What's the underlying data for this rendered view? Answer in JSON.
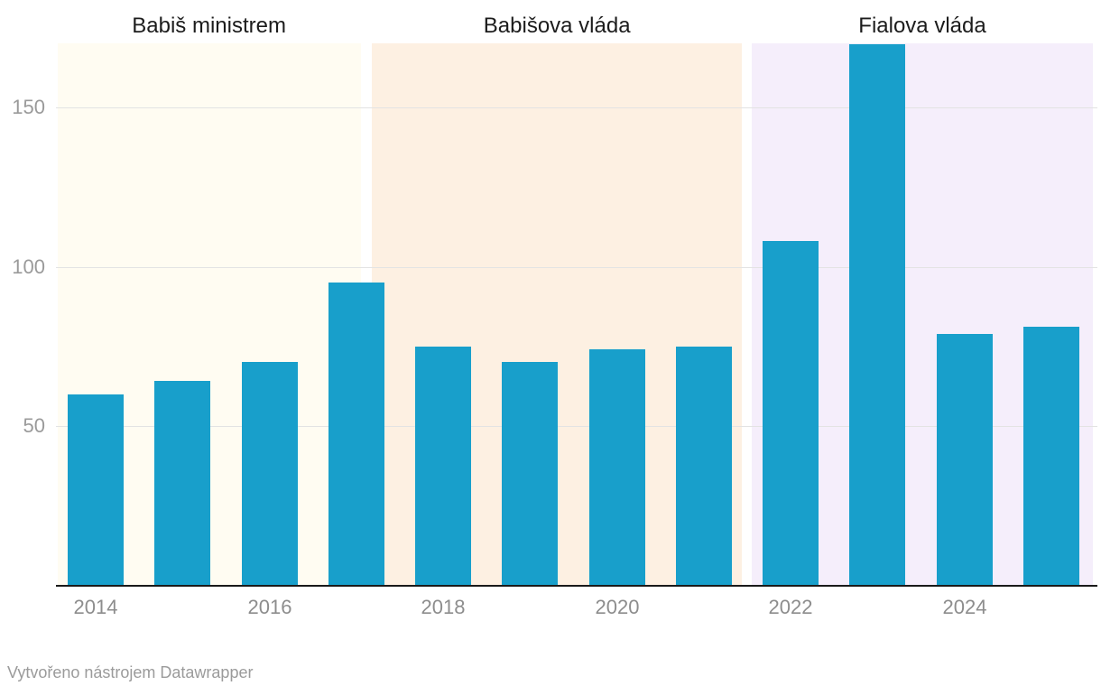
{
  "chart_data": {
    "type": "bar",
    "x": [
      2014,
      2015,
      2016,
      2017,
      2018,
      2019,
      2020,
      2021,
      2022,
      2023,
      2024,
      2025
    ],
    "values": [
      60,
      64,
      70,
      95,
      75,
      70,
      74,
      75,
      108,
      170,
      79,
      81
    ],
    "series_name": "",
    "title": "",
    "xlabel": "",
    "ylabel": "",
    "ylim": [
      0,
      170
    ],
    "y_ticks": [
      50,
      100,
      150
    ],
    "x_tick_years": [
      2014,
      2016,
      2018,
      2020,
      2022,
      2024
    ],
    "x_tick_labels": [
      "2014",
      "2016",
      "2018",
      "2020",
      "2022",
      "2024"
    ],
    "grid": "horizontal",
    "legend": "none",
    "bar_color": "#189fcb",
    "bands": [
      {
        "label": "Babiš ministrem",
        "from": 2013.56,
        "to": 2017.05,
        "color": "#fffcf2"
      },
      {
        "label": "Babišova vláda",
        "from": 2017.18,
        "to": 2021.44,
        "color": "#fdf0e2"
      },
      {
        "label": "Fialova vláda",
        "from": 2021.55,
        "to": 2025.48,
        "color": "#f5eefb"
      }
    ]
  },
  "footer": {
    "attribution": "Vytvořeno nástrojem Datawrapper"
  },
  "colors": {
    "bar": "#189fcb",
    "gridline": "#e3e3e3",
    "axis_line": "#1a1a1a",
    "tick_text": "#8d8d8d",
    "band_title_text": "#1c1c1c",
    "footer_text": "#9b9b9b"
  }
}
